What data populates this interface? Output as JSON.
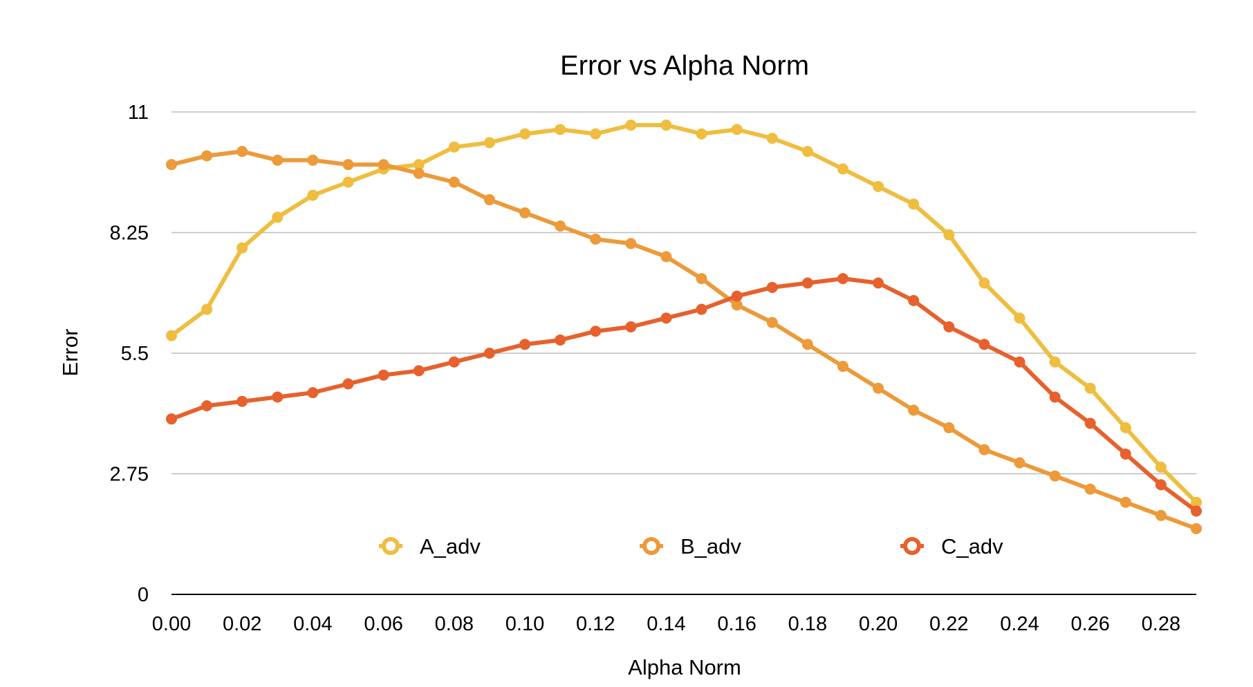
{
  "chart_data": {
    "type": "line",
    "title": "Error vs Alpha Norm",
    "xlabel": "Alpha Norm",
    "ylabel": "Error",
    "xlim": [
      0,
      0.29
    ],
    "ylim": [
      0,
      11
    ],
    "yticks": [
      0,
      2.75,
      5.5,
      8.25,
      11
    ],
    "ytick_labels": [
      "0",
      "2.75",
      "5.5",
      "8.25",
      "11"
    ],
    "xticks": [
      0,
      0.02,
      0.04,
      0.06,
      0.08,
      0.1,
      0.12,
      0.14,
      0.16,
      0.18,
      0.2,
      0.22,
      0.24,
      0.26,
      0.28
    ],
    "xtick_labels": [
      "0.00",
      "0.02",
      "0.04",
      "0.06",
      "0.08",
      "0.10",
      "0.12",
      "0.14",
      "0.16",
      "0.18",
      "0.20",
      "0.22",
      "0.24",
      "0.26",
      "0.28"
    ],
    "grid": true,
    "legend_position": "bottom-inside",
    "x": [
      0,
      0.01,
      0.02,
      0.03,
      0.04,
      0.05,
      0.06,
      0.07,
      0.08,
      0.09,
      0.1,
      0.11,
      0.12,
      0.13,
      0.14,
      0.15,
      0.16,
      0.17,
      0.18,
      0.19,
      0.2,
      0.21,
      0.22,
      0.23,
      0.24,
      0.25,
      0.26,
      0.27,
      0.28,
      0.29
    ],
    "series": [
      {
        "name": "A_adv",
        "color": "#efbd3f",
        "values": [
          5.9,
          6.5,
          7.9,
          8.6,
          9.1,
          9.4,
          9.7,
          9.8,
          10.2,
          10.3,
          10.5,
          10.6,
          10.5,
          10.7,
          10.7,
          10.5,
          10.6,
          10.4,
          10.1,
          9.7,
          9.3,
          8.9,
          8.2,
          7.1,
          6.3,
          5.3,
          4.7,
          3.8,
          2.9,
          2.1
        ]
      },
      {
        "name": "B_adv",
        "color": "#ec9a3a",
        "values": [
          9.8,
          10.0,
          10.1,
          9.9,
          9.9,
          9.8,
          9.8,
          9.6,
          9.4,
          9.0,
          8.7,
          8.4,
          8.1,
          8.0,
          7.7,
          7.2,
          6.6,
          6.2,
          5.7,
          5.2,
          4.7,
          4.2,
          3.8,
          3.3,
          3.0,
          2.7,
          2.4,
          2.1,
          1.8,
          1.5
        ]
      },
      {
        "name": "C_adv",
        "color": "#e6612d",
        "values": [
          4.0,
          4.3,
          4.4,
          4.5,
          4.6,
          4.8,
          5.0,
          5.1,
          5.3,
          5.5,
          5.7,
          5.8,
          6.0,
          6.1,
          6.3,
          6.5,
          6.8,
          7.0,
          7.1,
          7.2,
          7.1,
          6.7,
          6.1,
          5.7,
          5.3,
          4.5,
          3.9,
          3.2,
          2.5,
          1.9
        ]
      }
    ]
  }
}
